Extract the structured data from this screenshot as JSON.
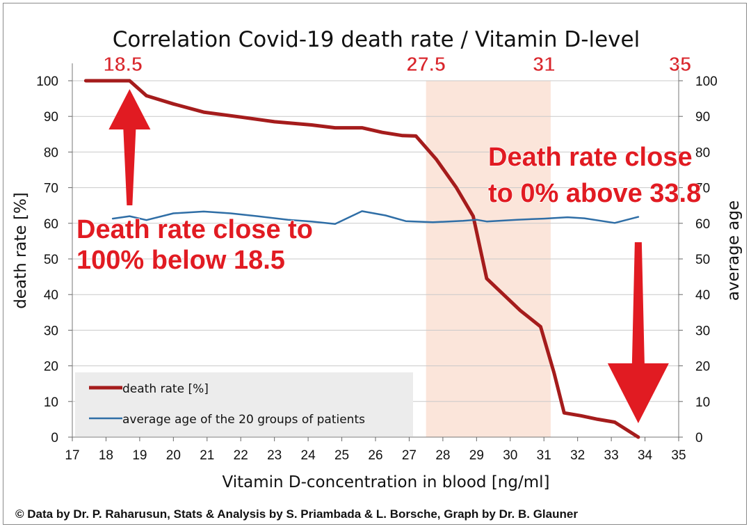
{
  "colors": {
    "death_rate": "#a51c1c",
    "average_age": "#2f6ea6",
    "highlight_band": "#fbe5da",
    "annotation_red": "#e11b22",
    "legend_bg": "#ececec",
    "grid": "#c9c9c9"
  },
  "credit": "© Data by Dr. P. Raharusun, Stats & Analysis by S. Priambada & L. Borsche, Graph by Dr. B. Glauner",
  "chart_data": {
    "type": "line",
    "title": "Correlation Covid-19 death rate / Vitamin D-level",
    "xlabel": "Vitamin D-concentration  in blood [ng/ml]",
    "ylabel_left": "death rate [%]",
    "ylabel_right": "average age",
    "xlim": [
      17,
      35
    ],
    "ylim": [
      0,
      100
    ],
    "x_ticks": [
      "17",
      "18",
      "19",
      "20",
      "21",
      "22",
      "23",
      "24",
      "25",
      "26",
      "27",
      "28",
      "29",
      "30",
      "31",
      "32",
      "33",
      "34",
      "35"
    ],
    "y_ticks_left": [
      "0",
      "10",
      "20",
      "30",
      "40",
      "50",
      "60",
      "70",
      "80",
      "90",
      "100"
    ],
    "y_ticks_right": [
      "0",
      "10",
      "20",
      "30",
      "40",
      "50",
      "60",
      "70",
      "80",
      "90",
      "100"
    ],
    "grid": "horizontal",
    "highlight_band": {
      "x_from": 27.5,
      "x_to": 31.2
    },
    "legend": {
      "position": "bottom-left",
      "entries": [
        "death rate [%]",
        "average age of the 20 groups of patients"
      ]
    },
    "markers": [
      {
        "label": "18.5",
        "x": 18.5
      },
      {
        "label": "27.5",
        "x": 27.5
      },
      {
        "label": "31",
        "x": 31
      },
      {
        "label": "35",
        "x": 35
      }
    ],
    "annotations": [
      {
        "lines": [
          "Death rate close to",
          "100% below 18.5"
        ],
        "arrow": "up",
        "arrow_x": 18.7
      },
      {
        "lines": [
          "Death rate close",
          "to 0% above 33.8"
        ],
        "arrow": "down",
        "arrow_x": 33.8
      }
    ],
    "series": [
      {
        "name": "death rate [%]",
        "color": "#a51c1c",
        "x": [
          17.4,
          18.7,
          19.2,
          20.0,
          20.9,
          22.0,
          23.0,
          24.1,
          24.8,
          25.6,
          26.2,
          26.8,
          27.2,
          27.8,
          28.4,
          28.9,
          29.3,
          29.8,
          30.3,
          30.9,
          31.3,
          31.6,
          32.1,
          32.6,
          33.1,
          33.8
        ],
        "values": [
          100,
          100,
          95.8,
          93.5,
          91.2,
          89.8,
          88.5,
          87.6,
          86.8,
          86.8,
          85.5,
          84.6,
          84.5,
          78,
          70,
          62,
          44.5,
          40,
          35.5,
          31,
          18,
          6.8,
          6,
          5,
          4.2,
          0
        ]
      },
      {
        "name": "average age of the 20 groups of patients",
        "color": "#2f6ea6",
        "x": [
          18.2,
          18.7,
          19.2,
          20.0,
          20.9,
          21.7,
          22.5,
          23.4,
          24.1,
          24.8,
          25.6,
          26.3,
          26.9,
          27.7,
          28.6,
          29.0,
          29.3,
          30.2,
          31.0,
          31.7,
          32.2,
          33.1,
          33.8
        ],
        "values": [
          61.3,
          62,
          60.9,
          62.8,
          63.3,
          62.8,
          62,
          61,
          60.5,
          59.8,
          63.4,
          62.2,
          60.6,
          60.3,
          60.7,
          61,
          60.5,
          61,
          61.3,
          61.7,
          61.4,
          60.1,
          61.8
        ]
      }
    ]
  }
}
